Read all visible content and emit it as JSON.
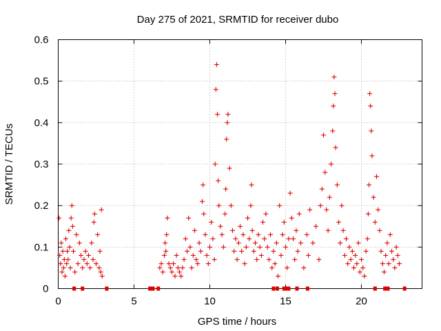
{
  "chart_data": {
    "type": "scatter",
    "title": "Day 275 of 2021, SRMTID for receiver dubo",
    "xlabel": "GPS time / hours",
    "ylabel": "SRMTID / TECUs",
    "xlim": [
      0,
      24
    ],
    "ylim": [
      0,
      0.6
    ],
    "xticks": [
      0,
      5,
      10,
      15,
      20
    ],
    "xtick_labels": [
      "0",
      "5",
      "10",
      "15",
      "20"
    ],
    "yticks": [
      0,
      0.1,
      0.2,
      0.3,
      0.4,
      0.5,
      0.6
    ],
    "ytick_labels": [
      "0",
      "0.1",
      "0.2",
      "0.3",
      "0.4",
      "0.5",
      "0.6"
    ],
    "grid": true,
    "marker": "+",
    "color": "#e00000",
    "series": [
      {
        "name": "SRMTID",
        "points": [
          [
            0.05,
            0.17
          ],
          [
            0.1,
            0.08
          ],
          [
            0.15,
            0.06
          ],
          [
            0.2,
            0.11
          ],
          [
            0.25,
            0.04
          ],
          [
            0.3,
            0.09
          ],
          [
            0.35,
            0.05
          ],
          [
            0.4,
            0.07
          ],
          [
            0.45,
            0.03
          ],
          [
            0.5,
            0.12
          ],
          [
            0.55,
            0.06
          ],
          [
            0.6,
            0.09
          ],
          [
            0.65,
            0.07
          ],
          [
            0.7,
            0.14
          ],
          [
            0.75,
            0.1
          ],
          [
            0.8,
            0.05
          ],
          [
            0.85,
            0.17
          ],
          [
            0.9,
            0.2
          ],
          [
            0.95,
            0.15
          ],
          [
            1.0,
            0.09
          ],
          [
            1.1,
            0.04
          ],
          [
            1.2,
            0.13
          ],
          [
            1.3,
            0.06
          ],
          [
            1.4,
            0.11
          ],
          [
            1.5,
            0.08
          ],
          [
            1.6,
            0.05
          ],
          [
            1.7,
            0.07
          ],
          [
            1.8,
            0.09
          ],
          [
            1.9,
            0.06
          ],
          [
            2.0,
            0.08
          ],
          [
            2.1,
            0.05
          ],
          [
            2.2,
            0.11
          ],
          [
            2.3,
            0.07
          ],
          [
            2.35,
            0.16
          ],
          [
            2.4,
            0.18
          ],
          [
            2.5,
            0.06
          ],
          [
            2.6,
            0.13
          ],
          [
            2.7,
            0.05
          ],
          [
            2.75,
            0.09
          ],
          [
            2.8,
            0.04
          ],
          [
            2.85,
            0.19
          ],
          [
            2.9,
            0.03
          ],
          [
            6.7,
            0.05
          ],
          [
            6.8,
            0.06
          ],
          [
            6.9,
            0.04
          ],
          [
            7.0,
            0.08
          ],
          [
            7.05,
            0.11
          ],
          [
            7.1,
            0.09
          ],
          [
            7.15,
            0.13
          ],
          [
            7.2,
            0.17
          ],
          [
            7.3,
            0.06
          ],
          [
            7.4,
            0.05
          ],
          [
            7.5,
            0.04
          ],
          [
            7.6,
            0.06
          ],
          [
            7.7,
            0.03
          ],
          [
            7.8,
            0.08
          ],
          [
            7.9,
            0.05
          ],
          [
            8.0,
            0.04
          ],
          [
            8.1,
            0.03
          ],
          [
            8.2,
            0.05
          ],
          [
            8.3,
            0.07
          ],
          [
            8.4,
            0.12
          ],
          [
            8.5,
            0.09
          ],
          [
            8.6,
            0.17
          ],
          [
            8.7,
            0.1
          ],
          [
            8.8,
            0.05
          ],
          [
            8.9,
            0.08
          ],
          [
            9.0,
            0.14
          ],
          [
            9.1,
            0.07
          ],
          [
            9.2,
            0.06
          ],
          [
            9.3,
            0.11
          ],
          [
            9.4,
            0.09
          ],
          [
            9.5,
            0.21
          ],
          [
            9.55,
            0.25
          ],
          [
            9.6,
            0.18
          ],
          [
            9.7,
            0.13
          ],
          [
            9.8,
            0.08
          ],
          [
            9.9,
            0.06
          ],
          [
            10.0,
            0.1
          ],
          [
            10.1,
            0.16
          ],
          [
            10.2,
            0.12
          ],
          [
            10.3,
            0.07
          ],
          [
            10.35,
            0.3
          ],
          [
            10.4,
            0.48
          ],
          [
            10.45,
            0.54
          ],
          [
            10.5,
            0.42
          ],
          [
            10.55,
            0.26
          ],
          [
            10.6,
            0.2
          ],
          [
            10.7,
            0.15
          ],
          [
            10.8,
            0.13
          ],
          [
            10.9,
            0.1
          ],
          [
            11.0,
            0.18
          ],
          [
            11.05,
            0.24
          ],
          [
            11.1,
            0.36
          ],
          [
            11.15,
            0.4
          ],
          [
            11.2,
            0.42
          ],
          [
            11.3,
            0.29
          ],
          [
            11.4,
            0.2
          ],
          [
            11.5,
            0.14
          ],
          [
            11.6,
            0.09
          ],
          [
            11.7,
            0.12
          ],
          [
            11.8,
            0.07
          ],
          [
            11.9,
            0.11
          ],
          [
            12.0,
            0.15
          ],
          [
            12.1,
            0.09
          ],
          [
            12.2,
            0.13
          ],
          [
            12.3,
            0.06
          ],
          [
            12.4,
            0.1
          ],
          [
            12.5,
            0.17
          ],
          [
            12.6,
            0.12
          ],
          [
            12.7,
            0.2
          ],
          [
            12.75,
            0.25
          ],
          [
            12.8,
            0.14
          ],
          [
            12.9,
            0.09
          ],
          [
            13.0,
            0.11
          ],
          [
            13.1,
            0.07
          ],
          [
            13.2,
            0.13
          ],
          [
            13.3,
            0.1
          ],
          [
            13.4,
            0.08
          ],
          [
            13.5,
            0.16
          ],
          [
            13.6,
            0.12
          ],
          [
            13.7,
            0.18
          ],
          [
            13.8,
            0.1
          ],
          [
            13.9,
            0.07
          ],
          [
            14.0,
            0.13
          ],
          [
            14.1,
            0.05
          ],
          [
            14.2,
            0.09
          ],
          [
            14.3,
            0.06
          ],
          [
            14.4,
            0.11
          ],
          [
            14.5,
            0.03
          ],
          [
            14.6,
            0.2
          ],
          [
            14.7,
            0.08
          ],
          [
            14.8,
            0.13
          ],
          [
            14.9,
            0.16
          ],
          [
            15.0,
            0.1
          ],
          [
            15.1,
            0.05
          ],
          [
            15.2,
            0.12
          ],
          [
            15.3,
            0.23
          ],
          [
            15.4,
            0.17
          ],
          [
            15.5,
            0.12
          ],
          [
            15.6,
            0.07
          ],
          [
            15.7,
            0.14
          ],
          [
            15.8,
            0.09
          ],
          [
            15.9,
            0.18
          ],
          [
            16.0,
            0.11
          ],
          [
            16.2,
            0.05
          ],
          [
            16.4,
            0.13
          ],
          [
            16.5,
            0.08
          ],
          [
            16.6,
            0.19
          ],
          [
            16.8,
            0.11
          ],
          [
            17.0,
            0.15
          ],
          [
            17.2,
            0.07
          ],
          [
            17.3,
            0.2
          ],
          [
            17.4,
            0.24
          ],
          [
            17.5,
            0.37
          ],
          [
            17.6,
            0.28
          ],
          [
            17.7,
            0.19
          ],
          [
            17.8,
            0.14
          ],
          [
            17.9,
            0.22
          ],
          [
            18.0,
            0.3
          ],
          [
            18.1,
            0.38
          ],
          [
            18.15,
            0.44
          ],
          [
            18.2,
            0.51
          ],
          [
            18.25,
            0.47
          ],
          [
            18.3,
            0.34
          ],
          [
            18.4,
            0.25
          ],
          [
            18.5,
            0.16
          ],
          [
            18.6,
            0.11
          ],
          [
            18.7,
            0.2
          ],
          [
            18.8,
            0.14
          ],
          [
            18.9,
            0.08
          ],
          [
            19.0,
            0.12
          ],
          [
            19.1,
            0.06
          ],
          [
            19.2,
            0.1
          ],
          [
            19.3,
            0.07
          ],
          [
            19.4,
            0.09
          ],
          [
            19.5,
            0.05
          ],
          [
            19.6,
            0.08
          ],
          [
            19.7,
            0.06
          ],
          [
            19.8,
            0.11
          ],
          [
            19.9,
            0.04
          ],
          [
            20.0,
            0.07
          ],
          [
            20.1,
            0.05
          ],
          [
            20.2,
            0.03
          ],
          [
            20.3,
            0.09
          ],
          [
            20.4,
            0.12
          ],
          [
            20.45,
            0.18
          ],
          [
            20.5,
            0.25
          ],
          [
            20.55,
            0.47
          ],
          [
            20.6,
            0.44
          ],
          [
            20.65,
            0.38
          ],
          [
            20.7,
            0.32
          ],
          [
            20.8,
            0.22
          ],
          [
            20.9,
            0.16
          ],
          [
            21.0,
            0.27
          ],
          [
            21.1,
            0.19
          ],
          [
            21.2,
            0.14
          ],
          [
            21.3,
            0.09
          ],
          [
            21.4,
            0.06
          ],
          [
            21.5,
            0.04
          ],
          [
            21.6,
            0.08
          ],
          [
            21.7,
            0.11
          ],
          [
            21.8,
            0.06
          ],
          [
            21.9,
            0.13
          ],
          [
            22.0,
            0.09
          ],
          [
            22.1,
            0.07
          ],
          [
            22.2,
            0.05
          ],
          [
            22.3,
            0.1
          ],
          [
            22.4,
            0.08
          ],
          [
            22.5,
            0.06
          ]
        ],
        "zero_points": [
          1.05,
          1.6,
          3.2,
          6.05,
          6.25,
          6.6,
          14.2,
          14.45,
          14.9,
          15.05,
          15.2,
          15.75,
          16.45,
          20.9,
          21.55,
          21.75,
          22.85
        ]
      }
    ]
  }
}
